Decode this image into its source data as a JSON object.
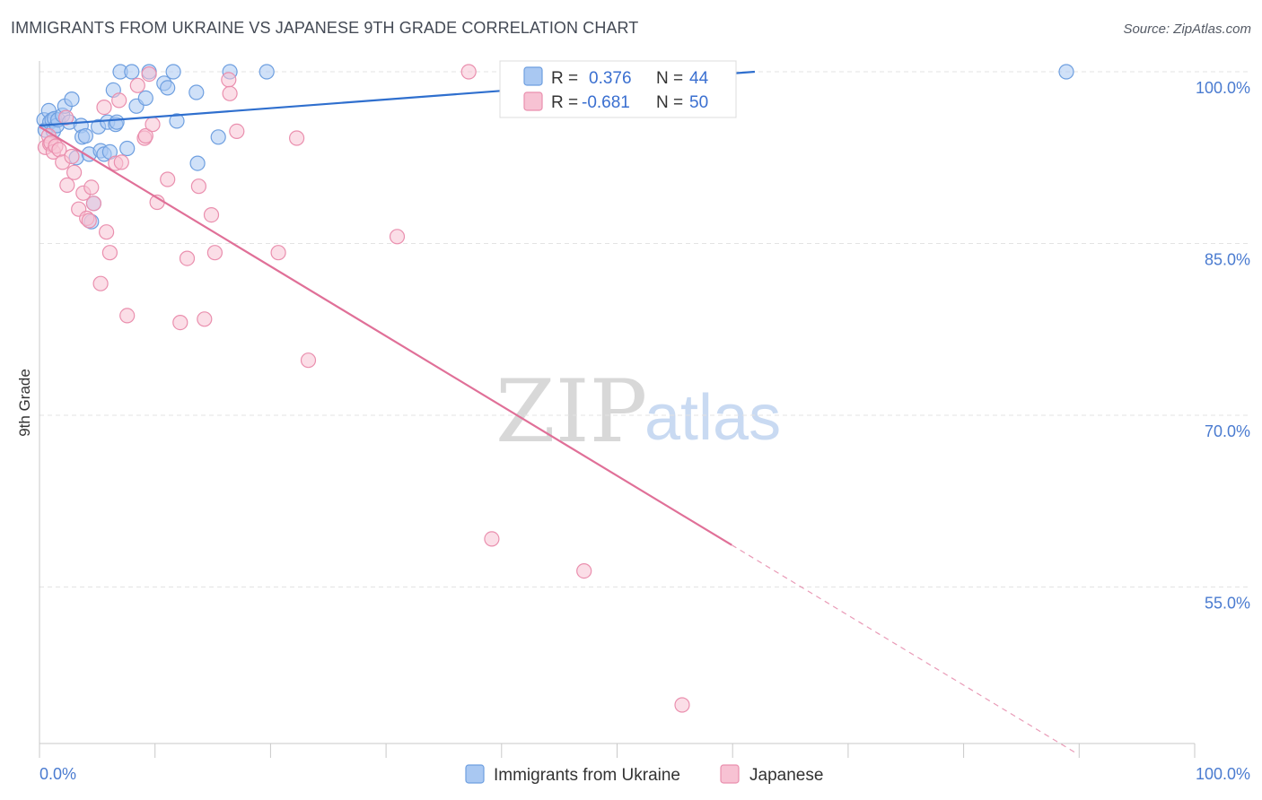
{
  "header": {
    "title": "IMMIGRANTS FROM UKRAINE VS JAPANESE 9TH GRADE CORRELATION CHART",
    "source": "Source: ZipAtlas.com"
  },
  "watermark": {
    "zip": "ZIP",
    "atlas": "atlas"
  },
  "colors": {
    "blue_fill": "#a9c8f2",
    "blue_stroke": "#6e9fe0",
    "blue_line": "#2f6fce",
    "pink_fill": "#f7c2d3",
    "pink_stroke": "#ea8fae",
    "pink_line": "#e07098",
    "tick_label": "#4a7bd0",
    "grid": "#e3e3e3"
  },
  "legend_top": {
    "rows": [
      {
        "r_label": "R = ",
        "r_value": "0.376",
        "n_label": "N = ",
        "n_value": "44",
        "series": "ukraine"
      },
      {
        "r_label": "R = ",
        "r_value": "-0.681",
        "n_label": "N = ",
        "n_value": "50",
        "series": "japanese"
      }
    ]
  },
  "legend_bottom": {
    "items": [
      {
        "label": "Immigrants from Ukraine",
        "series": "ukraine"
      },
      {
        "label": "Japanese",
        "series": "japanese"
      }
    ]
  },
  "chart_data": {
    "type": "scatter",
    "title": "IMMIGRANTS FROM UKRAINE VS JAPANESE 9TH GRADE CORRELATION CHART",
    "xlabel": "",
    "ylabel": "9th Grade",
    "xlim": [
      0,
      100
    ],
    "ylim": [
      40,
      101
    ],
    "x_tick_labels": [
      "0.0%",
      "100.0%"
    ],
    "y_ticks": [
      {
        "value": 100,
        "label": "100.0%"
      },
      {
        "value": 85,
        "label": "85.0%"
      },
      {
        "value": 70,
        "label": "70.0%"
      },
      {
        "value": 55,
        "label": "55.0%"
      }
    ],
    "series": [
      {
        "name": "Immigrants from Ukraine",
        "key": "ukraine",
        "R": 0.376,
        "N": 44,
        "trend": {
          "x0": 0,
          "y0": 95.3,
          "x1": 62,
          "y1": 100.0,
          "dashed_from": null
        },
        "points": [
          [
            0.4,
            95.8
          ],
          [
            0.5,
            94.9
          ],
          [
            0.8,
            96.6
          ],
          [
            0.9,
            95.6
          ],
          [
            1.1,
            95.8
          ],
          [
            1.2,
            94.8
          ],
          [
            1.3,
            95.9
          ],
          [
            1.5,
            95.3
          ],
          [
            1.6,
            95.8
          ],
          [
            2.0,
            96.2
          ],
          [
            2.2,
            97.0
          ],
          [
            2.6,
            95.6
          ],
          [
            2.8,
            97.6
          ],
          [
            3.2,
            92.5
          ],
          [
            3.6,
            95.3
          ],
          [
            3.7,
            94.3
          ],
          [
            4.0,
            94.4
          ],
          [
            4.3,
            92.8
          ],
          [
            4.5,
            86.9
          ],
          [
            4.7,
            88.5
          ],
          [
            5.1,
            95.2
          ],
          [
            5.3,
            93.1
          ],
          [
            5.6,
            92.8
          ],
          [
            5.9,
            95.6
          ],
          [
            6.1,
            93.0
          ],
          [
            6.4,
            98.4
          ],
          [
            6.6,
            95.4
          ],
          [
            6.7,
            95.6
          ],
          [
            7.0,
            100.0
          ],
          [
            7.6,
            93.3
          ],
          [
            8.0,
            100.0
          ],
          [
            8.4,
            97.0
          ],
          [
            9.2,
            97.7
          ],
          [
            9.5,
            100.0
          ],
          [
            10.8,
            99.0
          ],
          [
            11.1,
            98.6
          ],
          [
            11.6,
            100.0
          ],
          [
            11.9,
            95.7
          ],
          [
            13.6,
            98.2
          ],
          [
            13.7,
            92.0
          ],
          [
            15.5,
            94.3
          ],
          [
            16.5,
            100.0
          ],
          [
            19.7,
            100.0
          ],
          [
            89.0,
            100.0
          ]
        ]
      },
      {
        "name": "Japanese",
        "key": "japanese",
        "R": -0.681,
        "N": 50,
        "trend": {
          "x0": 0,
          "y0": 95.2,
          "x1": 90,
          "y1": 40.4,
          "dashed_from": 60
        },
        "points": [
          [
            0.5,
            93.4
          ],
          [
            0.8,
            94.4
          ],
          [
            0.9,
            93.7
          ],
          [
            1.0,
            93.8
          ],
          [
            1.2,
            93.0
          ],
          [
            1.4,
            93.5
          ],
          [
            1.7,
            93.2
          ],
          [
            2.0,
            92.1
          ],
          [
            2.3,
            96.0
          ],
          [
            2.4,
            90.1
          ],
          [
            2.8,
            92.6
          ],
          [
            3.0,
            91.2
          ],
          [
            3.4,
            88.0
          ],
          [
            3.8,
            89.4
          ],
          [
            4.1,
            87.2
          ],
          [
            4.3,
            87.0
          ],
          [
            4.5,
            89.9
          ],
          [
            4.7,
            88.5
          ],
          [
            5.3,
            81.5
          ],
          [
            5.6,
            96.9
          ],
          [
            5.8,
            86.0
          ],
          [
            6.1,
            84.2
          ],
          [
            6.6,
            92.0
          ],
          [
            6.9,
            97.5
          ],
          [
            7.1,
            92.1
          ],
          [
            7.6,
            78.7
          ],
          [
            8.5,
            98.8
          ],
          [
            9.1,
            94.2
          ],
          [
            9.2,
            94.4
          ],
          [
            9.5,
            99.8
          ],
          [
            9.8,
            95.4
          ],
          [
            10.2,
            88.6
          ],
          [
            11.1,
            90.6
          ],
          [
            12.2,
            78.1
          ],
          [
            12.8,
            83.7
          ],
          [
            13.8,
            90.0
          ],
          [
            14.3,
            78.4
          ],
          [
            14.9,
            87.5
          ],
          [
            15.2,
            84.2
          ],
          [
            16.4,
            99.3
          ],
          [
            16.5,
            98.1
          ],
          [
            17.1,
            94.8
          ],
          [
            20.7,
            84.2
          ],
          [
            22.3,
            94.2
          ],
          [
            23.3,
            74.8
          ],
          [
            31.0,
            85.6
          ],
          [
            37.2,
            100.0
          ],
          [
            39.2,
            59.2
          ],
          [
            47.2,
            56.4
          ],
          [
            55.7,
            44.7
          ]
        ]
      }
    ]
  }
}
